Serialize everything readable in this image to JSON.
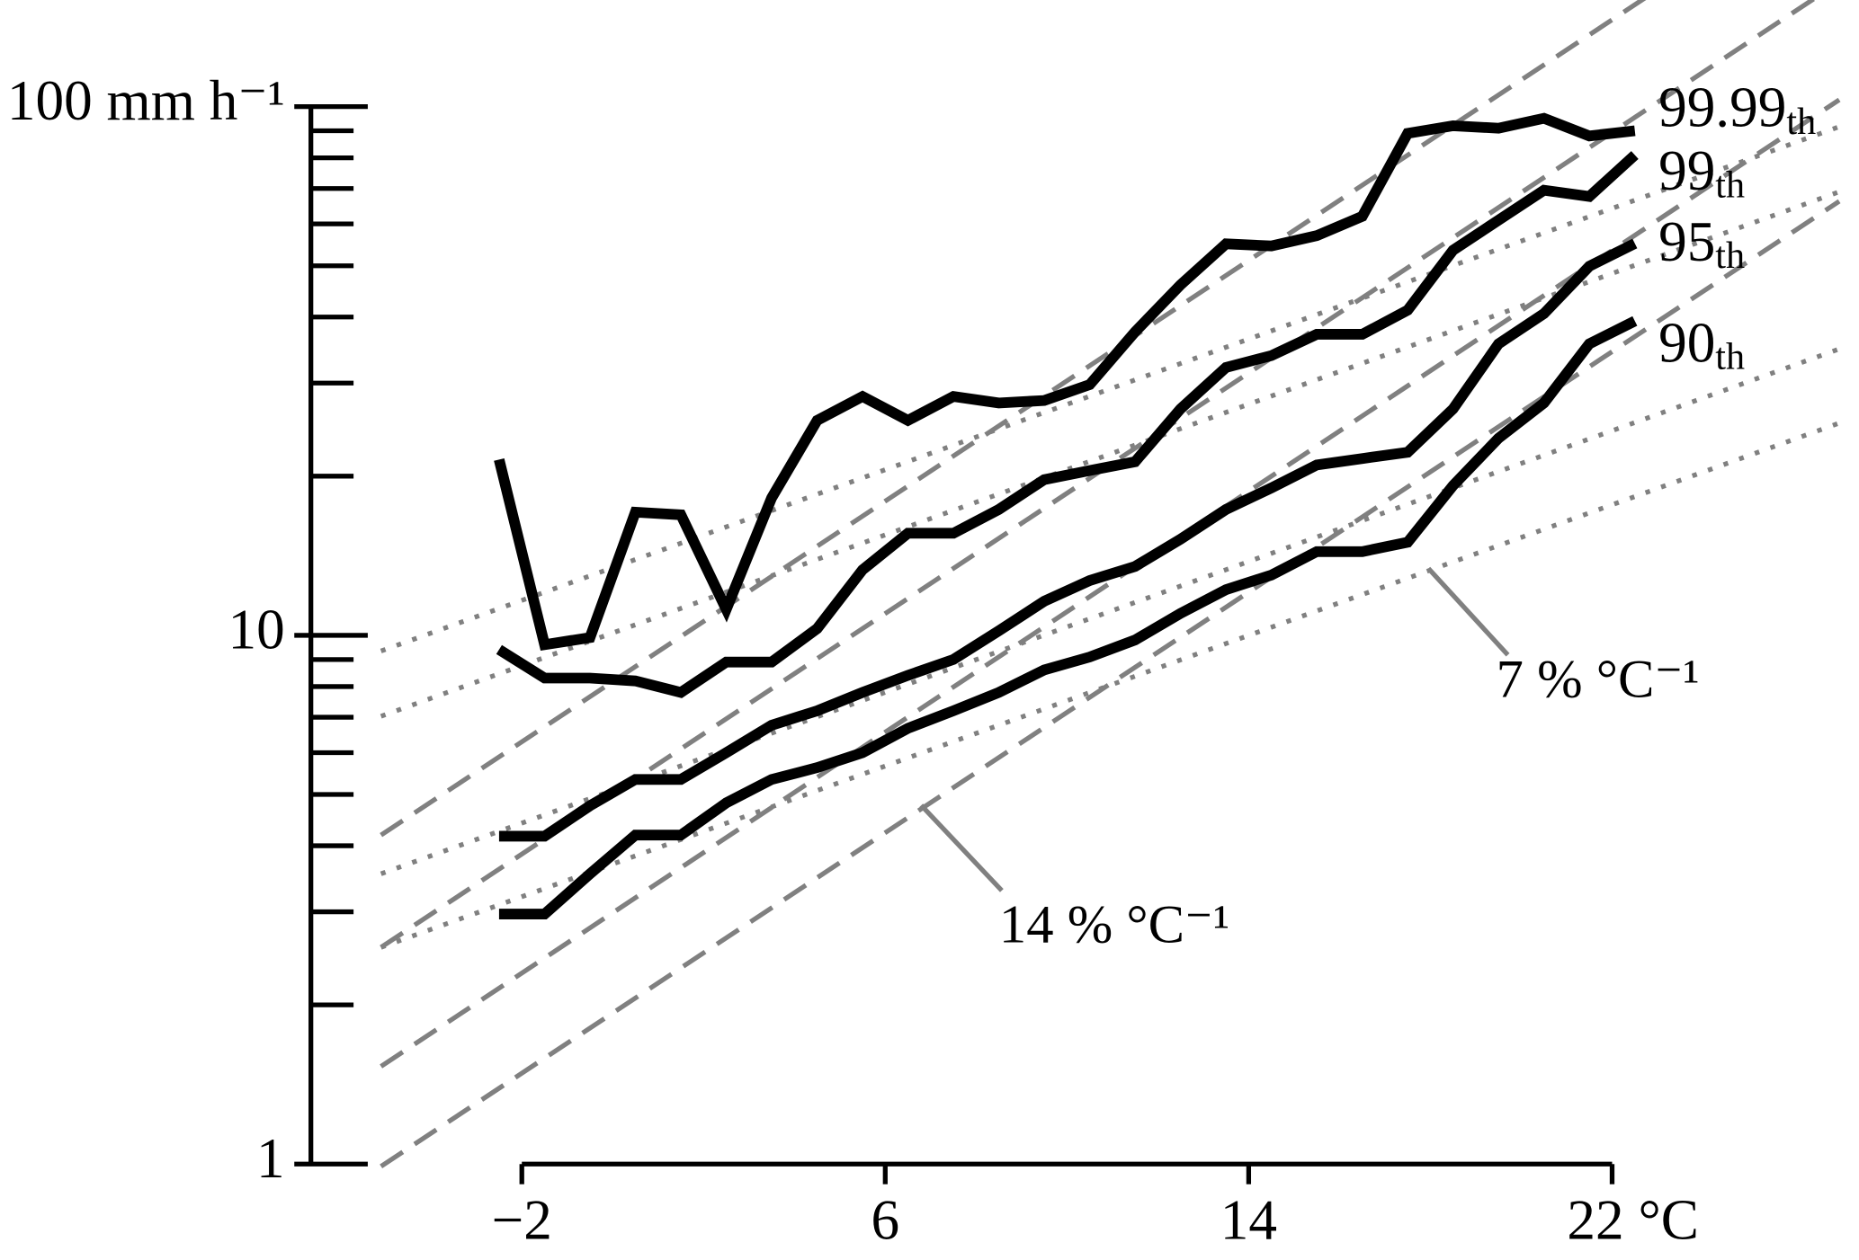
{
  "chart_data": {
    "type": "line",
    "log_y": true,
    "x": [
      -2.5,
      -1.5,
      -0.5,
      0.5,
      1.5,
      2.5,
      3.5,
      4.5,
      5.5,
      6.5,
      7.5,
      8.5,
      9.5,
      10.5,
      11.5,
      12.5,
      13.5,
      14.5,
      15.5,
      16.5,
      17.5,
      18.5,
      19.5,
      20.5,
      21.5,
      22.5
    ],
    "series": [
      {
        "name": "99.99th",
        "color": "#000000",
        "values": [
          21.5,
          9.6,
          9.9,
          17.1,
          16.9,
          11.2,
          18.2,
          25.5,
          28.3,
          25.5,
          28.3,
          27.5,
          27.8,
          29.8,
          37.5,
          46,
          55,
          54.5,
          57,
          62,
          89,
          92,
          91,
          95,
          88,
          90
        ]
      },
      {
        "name": "99th",
        "color": "#000000",
        "values": [
          9.4,
          8.3,
          8.3,
          8.2,
          7.8,
          8.9,
          8.9,
          10.3,
          13.3,
          15.6,
          15.6,
          17.3,
          19.7,
          20.5,
          21.3,
          26.8,
          32.1,
          33.8,
          37.1,
          37.1,
          41.2,
          53.5,
          61,
          69.5,
          67.6,
          81
        ]
      },
      {
        "name": "95th",
        "color": "#000000",
        "values": [
          4.17,
          4.17,
          4.76,
          5.34,
          5.34,
          6.0,
          6.76,
          7.2,
          7.8,
          8.4,
          9.0,
          10.2,
          11.6,
          12.7,
          13.5,
          15.2,
          17.3,
          19.0,
          21.0,
          21.6,
          22.2,
          26.8,
          35.6,
          40.6,
          49.9,
          55.1
        ]
      },
      {
        "name": "90th",
        "color": "#000000",
        "values": [
          2.97,
          2.97,
          3.54,
          4.19,
          4.19,
          4.82,
          5.34,
          5.62,
          6.0,
          6.67,
          7.2,
          7.8,
          8.6,
          9.1,
          9.8,
          11.0,
          12.2,
          13.0,
          14.4,
          14.4,
          15.0,
          19.2,
          23.6,
          27.5,
          35.6,
          39.3
        ]
      }
    ],
    "reference_lines": [
      {
        "style": "dashed",
        "color": "#808080",
        "x": [
          -5.1,
          27
        ],
        "values": [
          4.19,
          281
        ]
      },
      {
        "style": "dashed",
        "color": "#808080",
        "x": [
          -5.1,
          27
        ],
        "values": [
          2.57,
          172
        ]
      },
      {
        "style": "dashed",
        "color": "#808080",
        "x": [
          -5.1,
          27
        ],
        "values": [
          1.53,
          103
        ]
      },
      {
        "style": "dashed",
        "color": "#808080",
        "x": [
          -5.1,
          27
        ],
        "values": [
          0.99,
          66.2
        ]
      },
      {
        "style": "dotted",
        "color": "#808080",
        "x": [
          -5.1,
          27
        ],
        "values": [
          9.34,
          91.6
        ]
      },
      {
        "style": "dotted",
        "color": "#808080",
        "x": [
          -5.1,
          27
        ],
        "values": [
          7.03,
          69
        ]
      },
      {
        "style": "dotted",
        "color": "#808080",
        "x": [
          -5.1,
          27
        ],
        "values": [
          3.54,
          34.8
        ]
      },
      {
        "style": "dotted",
        "color": "#808080",
        "x": [
          -5.1,
          27
        ],
        "values": [
          2.57,
          25.2
        ]
      }
    ],
    "annotations": [
      "7 % °C⁻¹",
      "14 % °C⁻¹"
    ],
    "annotation_color": "#808080",
    "xlim": [
      -2,
      22
    ],
    "xticks": [
      {
        "value": -2,
        "label": "−2"
      },
      6,
      14,
      {
        "value": 22,
        "label": "22 °C"
      }
    ],
    "ylim": [
      1,
      100
    ],
    "yticks": [
      1,
      10,
      {
        "value": 100,
        "label": "100 mm h⁻¹"
      }
    ],
    "y_minor_ticks": [
      2,
      3,
      4,
      5,
      6,
      7,
      8,
      9,
      20,
      30,
      40,
      50,
      60,
      70,
      80,
      90
    ]
  }
}
